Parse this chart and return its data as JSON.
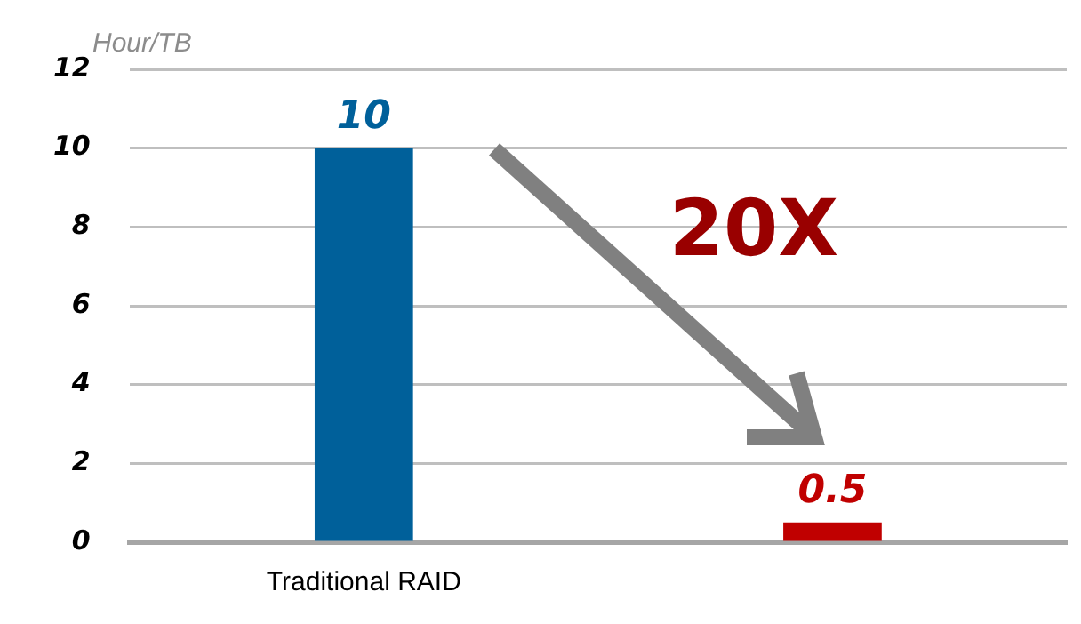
{
  "chart_data": {
    "type": "bar",
    "ylabel": "Hour/TB",
    "categories": [
      "Traditional RAID",
      null
    ],
    "values": [
      10,
      0.5
    ],
    "colors": [
      "#00609a",
      "#c00000"
    ],
    "ylim": [
      0,
      12
    ],
    "yticks": [
      0,
      2,
      4,
      6,
      8,
      10,
      12
    ],
    "grid": "y",
    "data_labels": true,
    "legend": false,
    "annotations": [
      "20X"
    ]
  }
}
